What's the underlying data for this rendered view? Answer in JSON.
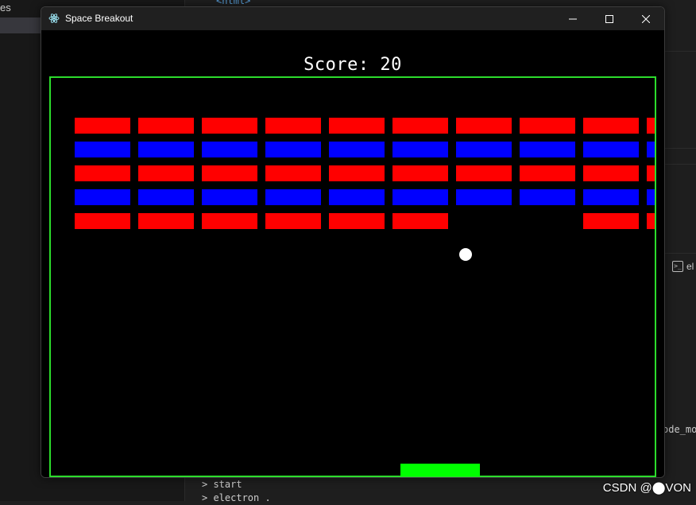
{
  "background": {
    "left_panel_text": "es",
    "right_panel_text": "ode_mo",
    "right_icon_label": "el",
    "code_fragment": "<html>",
    "terminal_lines": [
      "> start",
      "> electron ."
    ]
  },
  "watermark": "CSDN @⬤VON",
  "window": {
    "title": "Space Breakout",
    "controls": {
      "minimize": "—",
      "maximize": "☐",
      "close": "✕"
    }
  },
  "game": {
    "score_label": "Score:",
    "score": 20,
    "score_text": "Score: 20",
    "colors": {
      "border": "#2cdc2c",
      "paddle": "#00ff00",
      "ball": "#ffffff",
      "brick_red": "#ff0000",
      "brick_blue": "#0000ff"
    },
    "brick_rows": [
      {
        "color": "red",
        "present": [
          1,
          1,
          1,
          1,
          1,
          1,
          1,
          1,
          1,
          1
        ]
      },
      {
        "color": "blue",
        "present": [
          1,
          1,
          1,
          1,
          1,
          1,
          1,
          1,
          1,
          1
        ]
      },
      {
        "color": "red",
        "present": [
          1,
          1,
          1,
          1,
          1,
          1,
          1,
          1,
          1,
          1
        ]
      },
      {
        "color": "blue",
        "present": [
          1,
          1,
          1,
          1,
          1,
          1,
          1,
          1,
          1,
          1
        ]
      },
      {
        "color": "red",
        "present": [
          1,
          1,
          1,
          1,
          1,
          1,
          0,
          0,
          1,
          1
        ]
      }
    ]
  }
}
